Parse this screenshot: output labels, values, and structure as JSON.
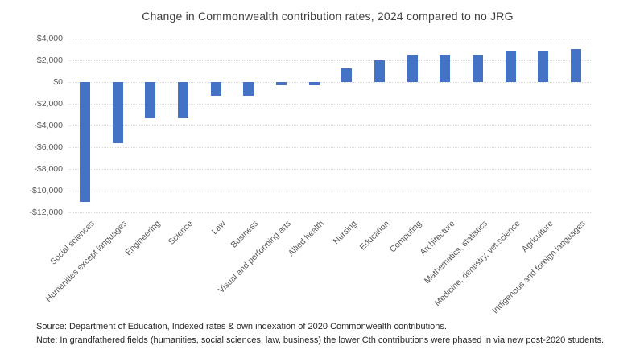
{
  "title": "Change in Commonwealth contribution rates, 2024 compared to no JRG",
  "footer": {
    "source_line": "Source: Department of Education, Indexed rates & own indexation of 2020 Commonwealth contributions.",
    "note_line": "Note: In grandfathered fields (humanities, social sciences, law, business) the lower Cth contributions were phased in via new post-2020 students."
  },
  "colors": {
    "bar": "#4472C4",
    "gridline": "#d9d9d9",
    "axis_text": "#595959",
    "title_text": "#404040",
    "footer_text": "#262626",
    "background": "#ffffff"
  },
  "chart_data": {
    "type": "bar",
    "title": "Change in Commonwealth contribution rates, 2024 compared to no JRG",
    "categories": [
      "Social sciences",
      "Humanities except languages",
      "Engineering",
      "Science",
      "Law",
      "Business",
      "Visual and performing arts",
      "Allied health",
      "Nursing",
      "Education",
      "Computing",
      "Architecture",
      "Mathematics, statistics",
      "Medicine, dentistry, vet.science",
      "Agriculture",
      "Indigenous and foreign languages"
    ],
    "values": [
      -11000,
      -5650,
      -3350,
      -3350,
      -1250,
      -1250,
      -300,
      -300,
      1250,
      2000,
      2500,
      2500,
      2500,
      2850,
      2850,
      3050
    ],
    "xlabel": "",
    "ylabel": "",
    "ylim": [
      -12000,
      4000
    ],
    "ytick_step": 2000,
    "yticks": [
      4000,
      2000,
      0,
      -2000,
      -4000,
      -6000,
      -8000,
      -10000,
      -12000
    ],
    "ytick_labels": [
      "$4,000",
      "$2,000",
      "$0",
      "-$2,000",
      "-$4,000",
      "-$6,000",
      "-$8,000",
      "-$10,000",
      "-$12,000"
    ],
    "grid": true,
    "gridline_style": "dotted",
    "legend": false,
    "bar_color": "#4472C4"
  }
}
